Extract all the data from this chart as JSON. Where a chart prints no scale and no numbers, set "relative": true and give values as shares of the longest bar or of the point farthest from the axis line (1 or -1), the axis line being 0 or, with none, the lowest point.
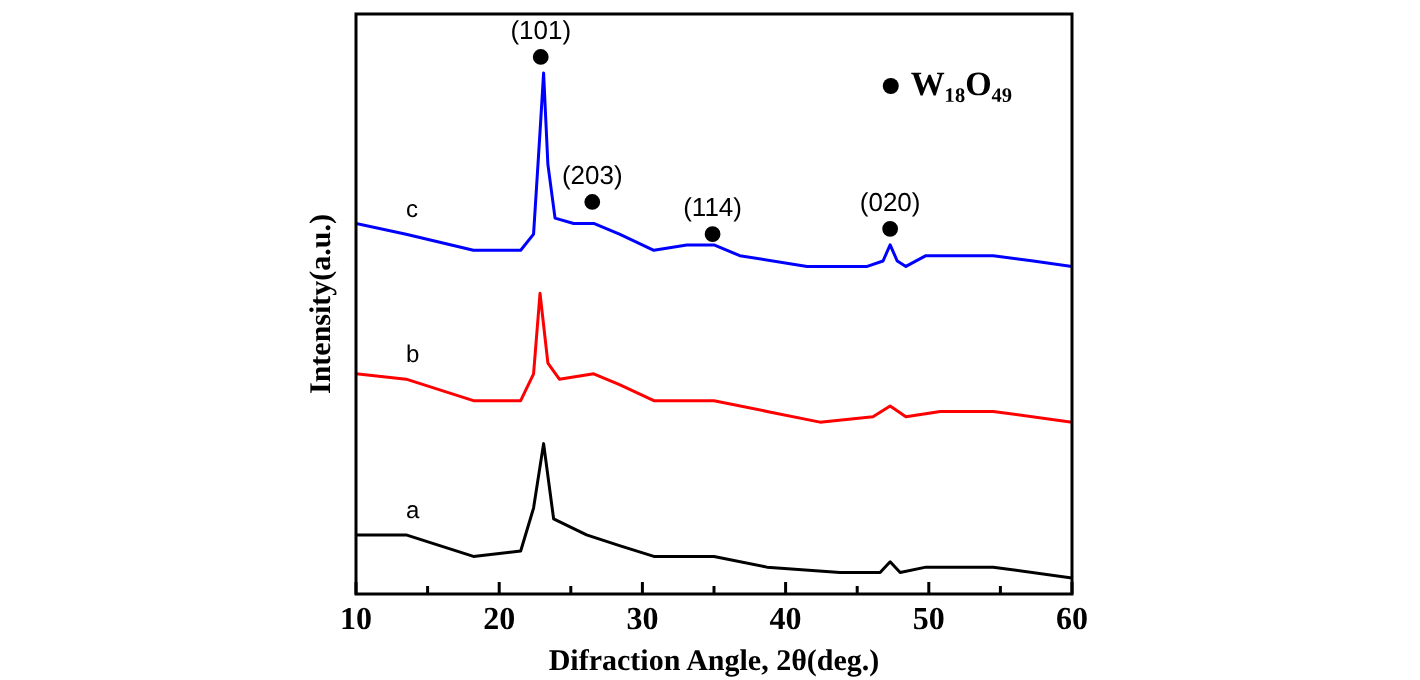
{
  "chart_data": {
    "type": "line",
    "relative": true,
    "xlabel": "Difraction Angle, 2θ(deg.)",
    "ylabel": "Intensity(a.u.)",
    "xlim": [
      10,
      60
    ],
    "xticks": [
      10,
      {
        "value": 15,
        "label": null
      },
      20,
      {
        "value": 25,
        "label": null
      },
      30,
      {
        "value": 35,
        "label": null
      },
      40,
      {
        "value": 45,
        "label": null
      },
      50,
      {
        "value": 55,
        "label": null
      },
      60
    ],
    "grid": false,
    "legend": "top right",
    "marker": "none",
    "line_style": "solid",
    "series": [
      {
        "name": "c",
        "color": "#0000ff",
        "x": [
          10,
          13.5,
          18.2,
          21.5,
          22.4,
          22.85,
          23.1,
          23.4,
          23.9,
          25.2,
          26.6,
          28.4,
          30.8,
          33.1,
          35,
          36.8,
          41.5,
          45.7,
          46.8,
          47.3,
          47.8,
          48.4,
          49.8,
          51.7,
          54.5,
          57.3,
          60
        ],
        "values": [
          0.69,
          0.67,
          0.64,
          0.64,
          0.67,
          0.86,
          0.97,
          0.8,
          0.7,
          0.69,
          0.69,
          0.67,
          0.64,
          0.65,
          0.65,
          0.63,
          0.61,
          0.61,
          0.62,
          0.65,
          0.62,
          0.61,
          0.63,
          0.63,
          0.63,
          0.62,
          0.61
        ]
      },
      {
        "name": "b",
        "color": "#ff0000",
        "x": [
          10,
          13.5,
          18.2,
          21.5,
          22.4,
          22.85,
          23.4,
          24.2,
          26.6,
          28.4,
          30.8,
          35,
          38.7,
          42.4,
          46.1,
          47.3,
          48.4,
          50.8,
          54.5,
          60
        ],
        "values": [
          0.41,
          0.4,
          0.36,
          0.36,
          0.41,
          0.56,
          0.43,
          0.4,
          0.41,
          0.39,
          0.36,
          0.36,
          0.34,
          0.32,
          0.33,
          0.35,
          0.33,
          0.34,
          0.34,
          0.32
        ]
      },
      {
        "name": "a",
        "color": "#000000",
        "x": [
          10,
          13.5,
          18.2,
          21.5,
          22.4,
          23.1,
          23.8,
          26.1,
          28.4,
          30.8,
          35,
          38.7,
          43.8,
          46.6,
          47.3,
          48,
          49.8,
          54.5,
          60
        ],
        "values": [
          0.11,
          0.11,
          0.07,
          0.08,
          0.16,
          0.28,
          0.14,
          0.11,
          0.09,
          0.07,
          0.07,
          0.05,
          0.04,
          0.04,
          0.06,
          0.04,
          0.05,
          0.05,
          0.03
        ]
      },
      {
        "name": "W₁₈O₄₉",
        "type": "scatter",
        "marker": "circle",
        "color": "#000000",
        "x": [
          22.9,
          26.5,
          34.9,
          47.3
        ],
        "values": [
          1,
          0.73,
          0.67,
          0.68
        ]
      }
    ],
    "annotations": [
      {
        "text": "(101)",
        "x": 22.9,
        "y": 1
      },
      {
        "text": "(203)",
        "x": 26.5,
        "y": 0.73
      },
      {
        "text": "(114)",
        "x": 34.9,
        "y": 0.67
      },
      {
        "text": "(020)",
        "x": 47.3,
        "y": 0.68
      }
    ]
  }
}
